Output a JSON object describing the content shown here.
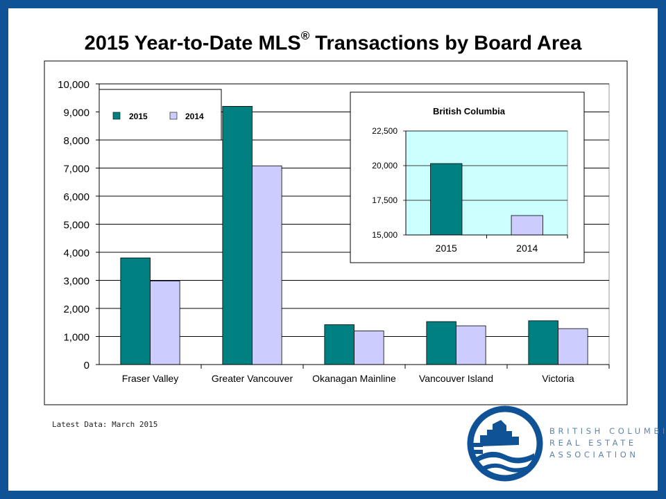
{
  "title": {
    "main": "2015 Year-to-Date MLS",
    "registered": "®",
    "rest": " Transactions by Board Area"
  },
  "footnote": "Latest Data: March 2015",
  "logo": {
    "line1": "BRITISH COLUMBIA",
    "line2": "REAL ESTATE",
    "line3": "ASSOCIATION"
  },
  "colors": {
    "series_2015": "#008080",
    "series_2014": "#ccccff",
    "inset_plot_bg": "#ccffff",
    "frame": "#0f5296"
  },
  "chart_data": [
    {
      "type": "bar",
      "title": "",
      "categories": [
        "Fraser Valley",
        "Greater Vancouver",
        "Okanagan Mainline",
        "Vancouver Island",
        "Victoria"
      ],
      "series": [
        {
          "name": "2015",
          "values": [
            3800,
            9200,
            1420,
            1530,
            1560
          ]
        },
        {
          "name": "2014",
          "values": [
            2980,
            7080,
            1200,
            1380,
            1280
          ]
        }
      ],
      "yticks": [
        "0",
        "1,000",
        "2,000",
        "3,000",
        "4,000",
        "5,000",
        "6,000",
        "7,000",
        "8,000",
        "9,000",
        "10,000"
      ],
      "ylim": [
        0,
        10000
      ],
      "ystep": 1000,
      "grid": true,
      "legend": "top-left"
    },
    {
      "type": "bar",
      "title": "British Columbia",
      "categories": [
        "2015",
        "2014"
      ],
      "values": [
        20150,
        16400
      ],
      "yticks": [
        "15,000",
        "17,500",
        "20,000",
        "22,500"
      ],
      "ylim": [
        15000,
        22500
      ],
      "ystep": 2500,
      "grid": true
    }
  ]
}
